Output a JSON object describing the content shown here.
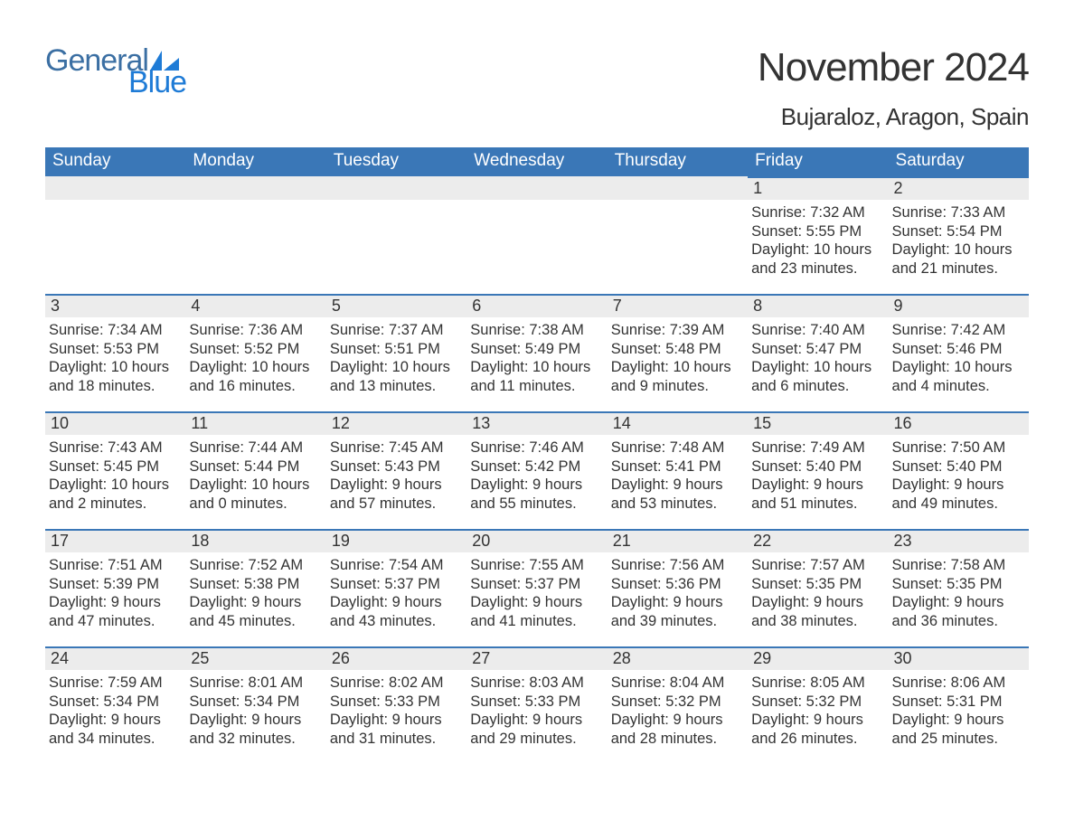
{
  "brand": {
    "line1": "General",
    "line2": "Blue"
  },
  "title": "November 2024",
  "location": "Bujaraloz, Aragon, Spain",
  "colors": {
    "header_bg": "#3a77b7",
    "header_text": "#ffffff",
    "daynum_bg": "#ececec",
    "day_border": "#3a77b7",
    "text": "#333333",
    "logo_general": "#3b6fa3",
    "logo_blue": "#1e7bd6",
    "background": "#ffffff"
  },
  "week_headers": [
    "Sunday",
    "Monday",
    "Tuesday",
    "Wednesday",
    "Thursday",
    "Friday",
    "Saturday"
  ],
  "labels": {
    "sunrise": "Sunrise:",
    "sunset": "Sunset:",
    "daylight": "Daylight:"
  },
  "weeks": [
    [
      {
        "empty": true
      },
      {
        "empty": true
      },
      {
        "empty": true
      },
      {
        "empty": true
      },
      {
        "empty": true
      },
      {
        "day": "1",
        "sunrise": "7:32 AM",
        "sunset": "5:55 PM",
        "daylight": "10 hours and 23 minutes."
      },
      {
        "day": "2",
        "sunrise": "7:33 AM",
        "sunset": "5:54 PM",
        "daylight": "10 hours and 21 minutes."
      }
    ],
    [
      {
        "day": "3",
        "sunrise": "7:34 AM",
        "sunset": "5:53 PM",
        "daylight": "10 hours and 18 minutes."
      },
      {
        "day": "4",
        "sunrise": "7:36 AM",
        "sunset": "5:52 PM",
        "daylight": "10 hours and 16 minutes."
      },
      {
        "day": "5",
        "sunrise": "7:37 AM",
        "sunset": "5:51 PM",
        "daylight": "10 hours and 13 minutes."
      },
      {
        "day": "6",
        "sunrise": "7:38 AM",
        "sunset": "5:49 PM",
        "daylight": "10 hours and 11 minutes."
      },
      {
        "day": "7",
        "sunrise": "7:39 AM",
        "sunset": "5:48 PM",
        "daylight": "10 hours and 9 minutes."
      },
      {
        "day": "8",
        "sunrise": "7:40 AM",
        "sunset": "5:47 PM",
        "daylight": "10 hours and 6 minutes."
      },
      {
        "day": "9",
        "sunrise": "7:42 AM",
        "sunset": "5:46 PM",
        "daylight": "10 hours and 4 minutes."
      }
    ],
    [
      {
        "day": "10",
        "sunrise": "7:43 AM",
        "sunset": "5:45 PM",
        "daylight": "10 hours and 2 minutes."
      },
      {
        "day": "11",
        "sunrise": "7:44 AM",
        "sunset": "5:44 PM",
        "daylight": "10 hours and 0 minutes."
      },
      {
        "day": "12",
        "sunrise": "7:45 AM",
        "sunset": "5:43 PM",
        "daylight": "9 hours and 57 minutes."
      },
      {
        "day": "13",
        "sunrise": "7:46 AM",
        "sunset": "5:42 PM",
        "daylight": "9 hours and 55 minutes."
      },
      {
        "day": "14",
        "sunrise": "7:48 AM",
        "sunset": "5:41 PM",
        "daylight": "9 hours and 53 minutes."
      },
      {
        "day": "15",
        "sunrise": "7:49 AM",
        "sunset": "5:40 PM",
        "daylight": "9 hours and 51 minutes."
      },
      {
        "day": "16",
        "sunrise": "7:50 AM",
        "sunset": "5:40 PM",
        "daylight": "9 hours and 49 minutes."
      }
    ],
    [
      {
        "day": "17",
        "sunrise": "7:51 AM",
        "sunset": "5:39 PM",
        "daylight": "9 hours and 47 minutes."
      },
      {
        "day": "18",
        "sunrise": "7:52 AM",
        "sunset": "5:38 PM",
        "daylight": "9 hours and 45 minutes."
      },
      {
        "day": "19",
        "sunrise": "7:54 AM",
        "sunset": "5:37 PM",
        "daylight": "9 hours and 43 minutes."
      },
      {
        "day": "20",
        "sunrise": "7:55 AM",
        "sunset": "5:37 PM",
        "daylight": "9 hours and 41 minutes."
      },
      {
        "day": "21",
        "sunrise": "7:56 AM",
        "sunset": "5:36 PM",
        "daylight": "9 hours and 39 minutes."
      },
      {
        "day": "22",
        "sunrise": "7:57 AM",
        "sunset": "5:35 PM",
        "daylight": "9 hours and 38 minutes."
      },
      {
        "day": "23",
        "sunrise": "7:58 AM",
        "sunset": "5:35 PM",
        "daylight": "9 hours and 36 minutes."
      }
    ],
    [
      {
        "day": "24",
        "sunrise": "7:59 AM",
        "sunset": "5:34 PM",
        "daylight": "9 hours and 34 minutes."
      },
      {
        "day": "25",
        "sunrise": "8:01 AM",
        "sunset": "5:34 PM",
        "daylight": "9 hours and 32 minutes."
      },
      {
        "day": "26",
        "sunrise": "8:02 AM",
        "sunset": "5:33 PM",
        "daylight": "9 hours and 31 minutes."
      },
      {
        "day": "27",
        "sunrise": "8:03 AM",
        "sunset": "5:33 PM",
        "daylight": "9 hours and 29 minutes."
      },
      {
        "day": "28",
        "sunrise": "8:04 AM",
        "sunset": "5:32 PM",
        "daylight": "9 hours and 28 minutes."
      },
      {
        "day": "29",
        "sunrise": "8:05 AM",
        "sunset": "5:32 PM",
        "daylight": "9 hours and 26 minutes."
      },
      {
        "day": "30",
        "sunrise": "8:06 AM",
        "sunset": "5:31 PM",
        "daylight": "9 hours and 25 minutes."
      }
    ]
  ]
}
